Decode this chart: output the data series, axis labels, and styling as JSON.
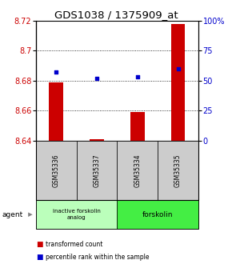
{
  "title": "GDS1038 / 1375909_at",
  "samples": [
    "GSM35336",
    "GSM35337",
    "GSM35334",
    "GSM35335"
  ],
  "bar_values": [
    8.679,
    8.641,
    8.659,
    8.718
  ],
  "bar_baseline": 8.64,
  "percentile_values": [
    57,
    52,
    53,
    60
  ],
  "ylim": [
    8.64,
    8.72
  ],
  "yticks": [
    8.64,
    8.66,
    8.68,
    8.7,
    8.72
  ],
  "ytick_labels": [
    "8.64",
    "8.66",
    "8.68",
    "8.7",
    "8.72"
  ],
  "y2lim": [
    0,
    100
  ],
  "y2ticks": [
    0,
    25,
    50,
    75,
    100
  ],
  "y2ticklabels": [
    "0",
    "25",
    "50",
    "75",
    "100%"
  ],
  "bar_color": "#cc0000",
  "dot_color": "#0000cc",
  "group1_label": "inactive forskolin\nanalog",
  "group2_label": "forskolin",
  "group1_color": "#bbffbb",
  "group2_color": "#44ee44",
  "agent_label": "agent",
  "legend_red_label": "transformed count",
  "legend_blue_label": "percentile rank within the sample",
  "title_fontsize": 9.5,
  "tick_fontsize": 7,
  "sample_box_color": "#cccccc"
}
